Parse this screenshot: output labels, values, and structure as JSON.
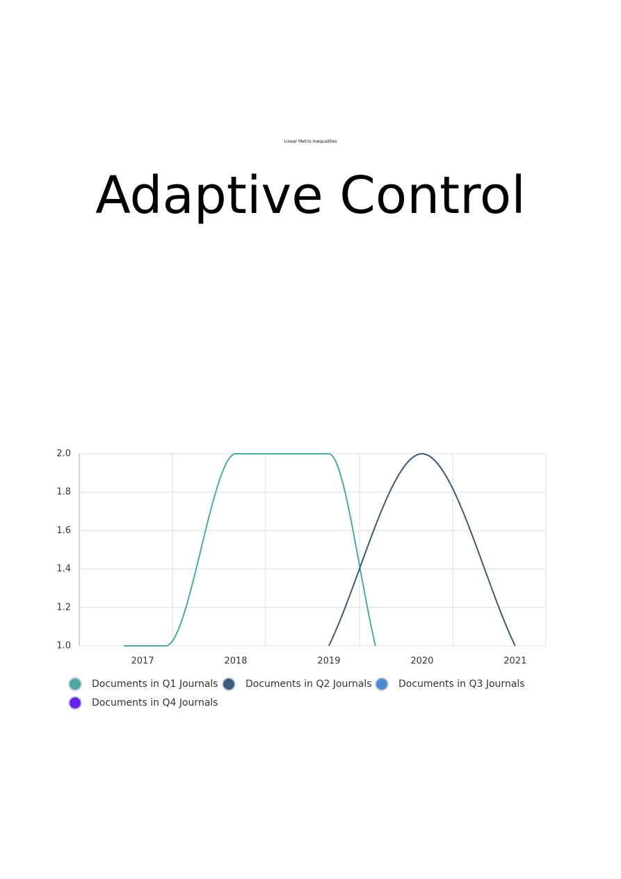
{
  "page": {
    "subtitle": "Linear Matrix Inequalities",
    "title": "Adaptive Control"
  },
  "chart_data": {
    "type": "line",
    "xlim": [
      2016.32,
      2021.33
    ],
    "xticks": [
      2017,
      2018,
      2019,
      2020,
      2021
    ],
    "xgrid": [
      2017.32,
      2018.32,
      2019.33,
      2020.33
    ],
    "ylim": [
      1,
      2
    ],
    "yticks": [
      {
        "value": 1,
        "label": "1.0"
      },
      1.2,
      1.4,
      1.6,
      1.8,
      {
        "value": 2,
        "label": "2.0"
      }
    ],
    "grid": true,
    "series": [
      {
        "name": "Documents in Q1 Journals",
        "color": "#4fa8a3",
        "x": [
          2016.8,
          2017.25,
          2018,
          2019,
          2019.5
        ],
        "values": [
          1,
          1,
          2,
          2,
          1
        ]
      },
      {
        "name": "Documents in Q2 Journals",
        "color": "#3d5a7a",
        "x": [
          2019,
          2020,
          2021
        ],
        "values": [
          1,
          2,
          1
        ]
      },
      {
        "name": "Documents in Q3 Journals",
        "color": "#4a8bd0",
        "x": [],
        "values": []
      },
      {
        "name": "Documents in Q4 Journals",
        "color": "#6a1ff0",
        "x": [],
        "values": []
      }
    ]
  }
}
